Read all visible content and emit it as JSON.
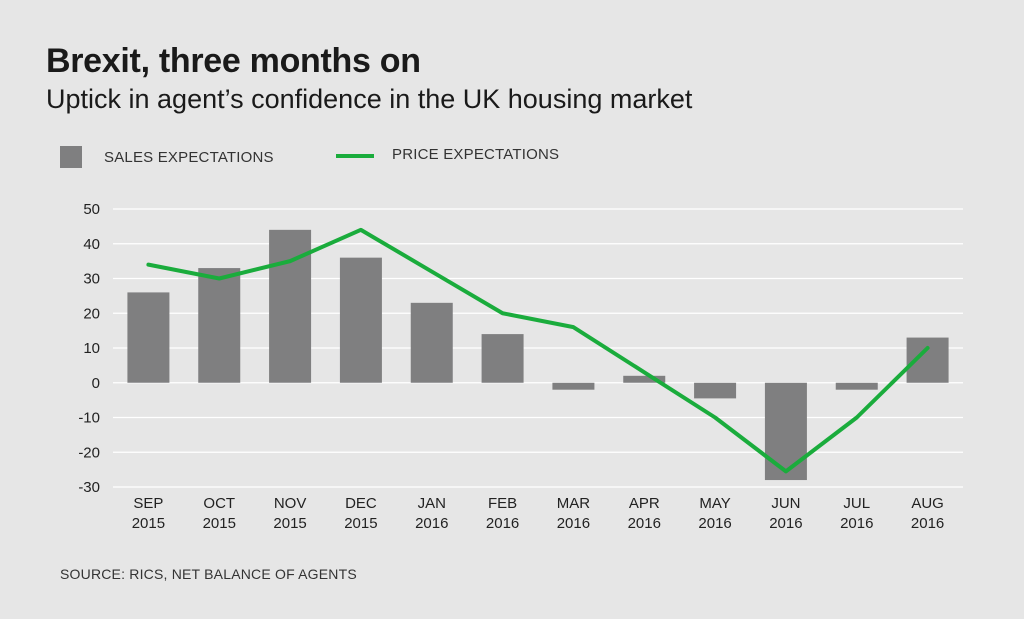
{
  "header": {
    "title": "Brexit, three months on",
    "subtitle": "Uptick in agent’s confidence in the UK housing market"
  },
  "legend": {
    "sales_label": "SALES EXPECTATIONS",
    "price_label": "PRICE EXPECTATIONS"
  },
  "footer": {
    "source": "SOURCE: RICS, NET BALANCE OF AGENTS"
  },
  "colors": {
    "background": "#e6e6e6",
    "bar": "#7f7f80",
    "line": "#1aac3c",
    "grid": "#ffffff"
  },
  "chart_data": {
    "type": "bar",
    "title": "Brexit, three months on",
    "subtitle": "Uptick in agent’s confidence in the UK housing market",
    "categories": [
      [
        "SEP",
        "2015"
      ],
      [
        "OCT",
        "2015"
      ],
      [
        "NOV",
        "2015"
      ],
      [
        "DEC",
        "2015"
      ],
      [
        "JAN",
        "2016"
      ],
      [
        "FEB",
        "2016"
      ],
      [
        "MAR",
        "2016"
      ],
      [
        "APR",
        "2016"
      ],
      [
        "MAY",
        "2016"
      ],
      [
        "JUN",
        "2016"
      ],
      [
        "JUL",
        "2016"
      ],
      [
        "AUG",
        "2016"
      ]
    ],
    "series": [
      {
        "name": "SALES EXPECTATIONS",
        "type": "bar",
        "values": [
          26,
          33,
          44,
          36,
          23,
          14,
          -2,
          2,
          -4.5,
          -28,
          -2,
          13
        ]
      },
      {
        "name": "PRICE EXPECTATIONS",
        "type": "line",
        "values": [
          34,
          30,
          35,
          44,
          32,
          20,
          16,
          3,
          -10,
          -25.5,
          -10,
          10
        ]
      }
    ],
    "ylim": [
      -30,
      50
    ],
    "yticks": [
      50,
      40,
      30,
      20,
      10,
      0,
      -10,
      -20,
      -30
    ],
    "xlabel": "",
    "ylabel": "",
    "grid": true,
    "legend_position": "top-left"
  }
}
